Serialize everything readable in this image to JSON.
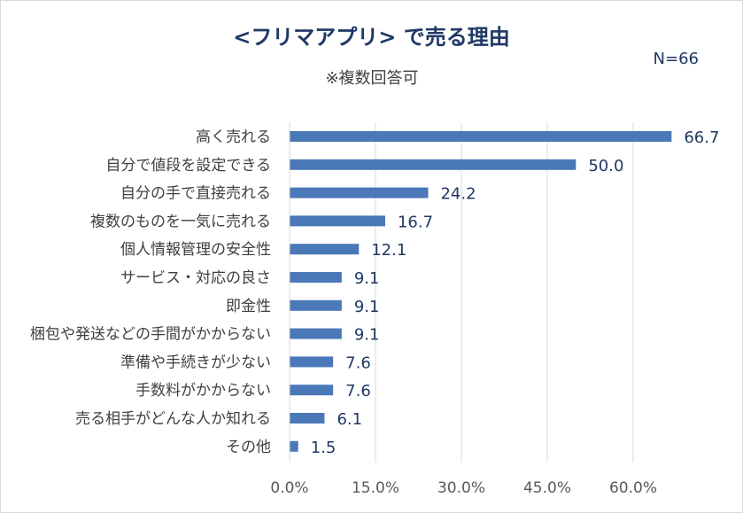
{
  "chart_data": {
    "type": "bar",
    "orientation": "horizontal",
    "title": "<フリマアプリ> で売る理由",
    "subtitle": "※複数回答可",
    "sample_size": "N=66",
    "categories": [
      "高く売れる",
      "自分で値段を設定できる",
      "自分の手で直接売れる",
      "複数のものを一気に売れる",
      "個人情報管理の安全性",
      "サービス・対応の良さ",
      "即金性",
      "梱包や発送などの手間がかからない",
      "準備や手続きが少ない",
      "手数料がかからない",
      "売る相手がどんな人か知れる",
      "その他"
    ],
    "values": [
      66.7,
      50.0,
      24.2,
      16.7,
      12.1,
      9.1,
      9.1,
      9.1,
      7.6,
      7.6,
      6.1,
      1.5
    ],
    "value_labels": [
      "66.7",
      "50.0",
      "24.2",
      "16.7",
      "12.1",
      "9.1",
      "9.1",
      "9.1",
      "7.6",
      "7.6",
      "6.1",
      "1.5"
    ],
    "xlim": [
      0,
      75
    ],
    "xticks": [
      0,
      15,
      30,
      45,
      60
    ],
    "xtick_labels": [
      "0.0%",
      "15.0%",
      "30.0%",
      "45.0%",
      "60.0%"
    ],
    "xlabel": "",
    "ylabel": "",
    "grid": true,
    "bar_color": "#4a78b8",
    "grid_color": "#d9d9d9"
  }
}
